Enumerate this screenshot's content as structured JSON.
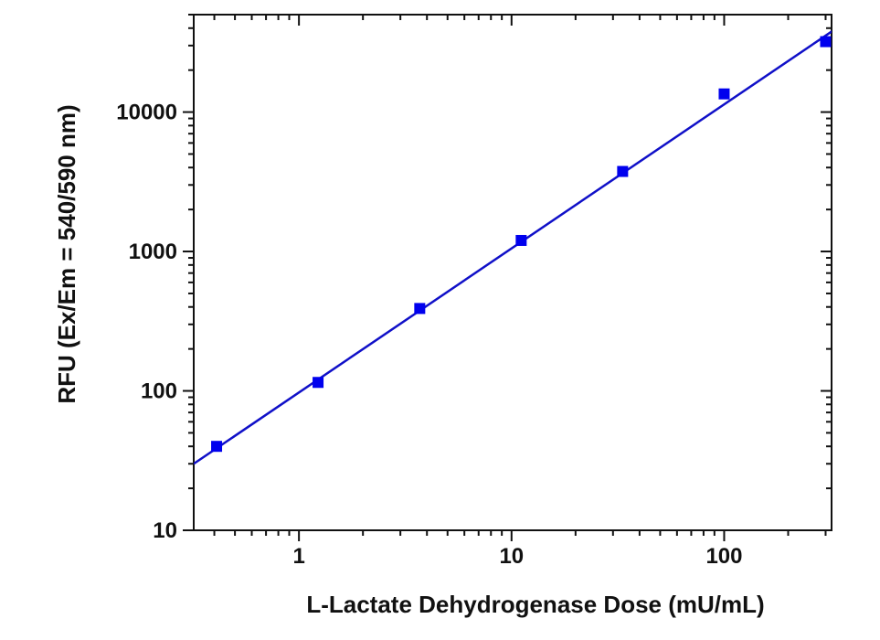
{
  "chart_data": {
    "type": "scatter",
    "xlabel": "L-Lactate Dehydrogenase Dose (mU/mL)",
    "ylabel": "RFU (Ex/Em = 540/590 nm)",
    "x_scale": "log",
    "y_scale": "log",
    "xlim": [
      0.32,
      320
    ],
    "ylim": [
      10,
      50000
    ],
    "x_ticks": [
      1,
      10,
      100
    ],
    "x_tick_labels": [
      "1",
      "10",
      "100"
    ],
    "y_ticks": [
      10,
      100,
      1000,
      10000
    ],
    "y_tick_labels": [
      "10",
      "100",
      "1000",
      "10000"
    ],
    "grid": false,
    "series": [
      {
        "color": "#0000ee",
        "marker": "square",
        "x": [
          0.41,
          1.23,
          3.7,
          11.1,
          33.3,
          100,
          300
        ],
        "y": [
          40,
          115,
          390,
          1200,
          3750,
          13500,
          32000
        ]
      }
    ],
    "fit_line": {
      "color": "#1010c8",
      "x": [
        0.32,
        330
      ],
      "y": [
        30,
        39000
      ]
    }
  }
}
